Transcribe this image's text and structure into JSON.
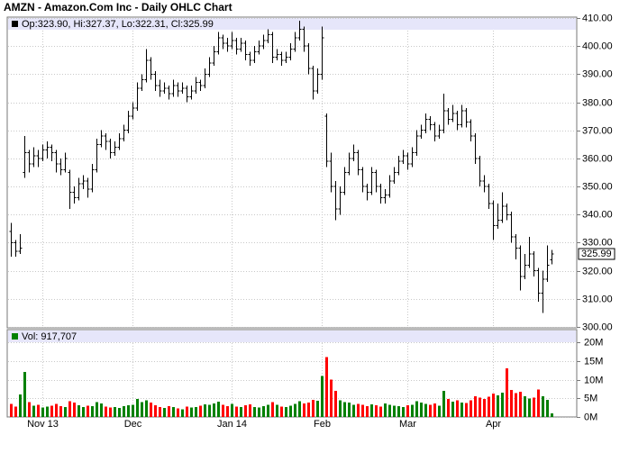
{
  "chart_data": {
    "type": "ohlc",
    "title": "AMZN - Amazon.Com Inc - Daily OHLC Chart",
    "price_legend": "Op:323.90, Hi:327.37, Lo:322.31, Cl:325.99",
    "volume_legend": "Vol: 917,707",
    "categories": [
      null,
      null,
      null,
      null,
      null,
      null,
      null,
      "Nov 13",
      null,
      null,
      null,
      null,
      null,
      null,
      null,
      null,
      null,
      null,
      null,
      null,
      null,
      null,
      null,
      null,
      null,
      null,
      null,
      "Dec",
      null,
      null,
      null,
      null,
      null,
      null,
      null,
      null,
      null,
      null,
      null,
      null,
      null,
      null,
      null,
      null,
      null,
      null,
      null,
      null,
      null,
      "Jan 14",
      null,
      null,
      null,
      null,
      null,
      null,
      null,
      null,
      null,
      null,
      null,
      null,
      null,
      null,
      null,
      null,
      null,
      null,
      null,
      "Feb",
      null,
      null,
      null,
      null,
      null,
      null,
      null,
      null,
      null,
      null,
      null,
      null,
      null,
      null,
      null,
      null,
      null,
      null,
      "Mar",
      null,
      null,
      null,
      null,
      null,
      null,
      null,
      null,
      null,
      null,
      null,
      null,
      null,
      null,
      null,
      null,
      null,
      null,
      "Apr",
      null,
      null,
      null,
      null,
      null,
      null,
      null,
      null,
      null,
      null,
      null,
      null,
      null
    ],
    "ohlc": [
      [
        334,
        337,
        325,
        330
      ],
      [
        330,
        331,
        325,
        327
      ],
      [
        327,
        333,
        326,
        328
      ],
      [
        355,
        368,
        353,
        362
      ],
      [
        362,
        363,
        355,
        358
      ],
      [
        358,
        364,
        357,
        361
      ],
      [
        361,
        363,
        357,
        360
      ],
      [
        360,
        365,
        359,
        363
      ],
      [
        363,
        366,
        360,
        364
      ],
      [
        364,
        365,
        359,
        362
      ],
      [
        362,
        363,
        355,
        358
      ],
      [
        358,
        360,
        354,
        356
      ],
      [
        356,
        362,
        355,
        360
      ],
      [
        355,
        356,
        342,
        348
      ],
      [
        348,
        350,
        344,
        346
      ],
      [
        346,
        353,
        345,
        351
      ],
      [
        351,
        354,
        349,
        352
      ],
      [
        352,
        353,
        346,
        349
      ],
      [
        349,
        358,
        348,
        356
      ],
      [
        356,
        367,
        355,
        365
      ],
      [
        365,
        370,
        364,
        368
      ],
      [
        368,
        369,
        363,
        366
      ],
      [
        366,
        367,
        360,
        362
      ],
      [
        362,
        366,
        361,
        364
      ],
      [
        364,
        369,
        363,
        367
      ],
      [
        367,
        372,
        366,
        370
      ],
      [
        370,
        377,
        369,
        375
      ],
      [
        375,
        380,
        374,
        378
      ],
      [
        378,
        387,
        377,
        385
      ],
      [
        385,
        390,
        384,
        388
      ],
      [
        388,
        399,
        387,
        395
      ],
      [
        395,
        396,
        388,
        390
      ],
      [
        390,
        391,
        384,
        386
      ],
      [
        386,
        388,
        382,
        384
      ],
      [
        384,
        387,
        383,
        385
      ],
      [
        385,
        386,
        381,
        383
      ],
      [
        383,
        388,
        382,
        386
      ],
      [
        386,
        387,
        382,
        384
      ],
      [
        384,
        387,
        383,
        385
      ],
      [
        385,
        386,
        380,
        382
      ],
      [
        382,
        386,
        381,
        384
      ],
      [
        384,
        389,
        383,
        387
      ],
      [
        387,
        388,
        384,
        386
      ],
      [
        386,
        392,
        385,
        390
      ],
      [
        390,
        396,
        389,
        394
      ],
      [
        394,
        400,
        393,
        398
      ],
      [
        398,
        405,
        397,
        403
      ],
      [
        403,
        404,
        399,
        401
      ],
      [
        401,
        403,
        398,
        400
      ],
      [
        400,
        405,
        399,
        402
      ],
      [
        402,
        403,
        397,
        399
      ],
      [
        399,
        403,
        398,
        401
      ],
      [
        401,
        402,
        395,
        397
      ],
      [
        397,
        398,
        393,
        395
      ],
      [
        395,
        400,
        394,
        398
      ],
      [
        398,
        402,
        397,
        400
      ],
      [
        400,
        404,
        399,
        402
      ],
      [
        402,
        406,
        401,
        404
      ],
      [
        404,
        405,
        394,
        396
      ],
      [
        396,
        399,
        395,
        397
      ],
      [
        397,
        398,
        393,
        395
      ],
      [
        395,
        398,
        394,
        396
      ],
      [
        396,
        401,
        395,
        399
      ],
      [
        399,
        405,
        398,
        403
      ],
      [
        403,
        409,
        402,
        406
      ],
      [
        406,
        407,
        398,
        400
      ],
      [
        400,
        401,
        390,
        392
      ],
      [
        392,
        393,
        381,
        384
      ],
      [
        384,
        392,
        383,
        390
      ],
      [
        390,
        407,
        388,
        403
      ],
      [
        375,
        376,
        357,
        359
      ],
      [
        359,
        362,
        348,
        350
      ],
      [
        350,
        352,
        338,
        342
      ],
      [
        342,
        350,
        340,
        348
      ],
      [
        348,
        357,
        347,
        355
      ],
      [
        355,
        362,
        354,
        360
      ],
      [
        360,
        365,
        359,
        362
      ],
      [
        362,
        363,
        354,
        356
      ],
      [
        356,
        357,
        348,
        350
      ],
      [
        350,
        351,
        345,
        348
      ],
      [
        348,
        357,
        347,
        355
      ],
      [
        355,
        356,
        348,
        350
      ],
      [
        350,
        351,
        344,
        346
      ],
      [
        346,
        349,
        344,
        347
      ],
      [
        347,
        354,
        346,
        352
      ],
      [
        352,
        357,
        351,
        355
      ],
      [
        355,
        361,
        354,
        359
      ],
      [
        359,
        363,
        358,
        361
      ],
      [
        361,
        362,
        356,
        358
      ],
      [
        358,
        364,
        357,
        362
      ],
      [
        362,
        370,
        361,
        368
      ],
      [
        368,
        372,
        367,
        370
      ],
      [
        370,
        376,
        369,
        374
      ],
      [
        374,
        375,
        370,
        372
      ],
      [
        372,
        373,
        366,
        368
      ],
      [
        368,
        372,
        367,
        370
      ],
      [
        370,
        383,
        369,
        377
      ],
      [
        377,
        378,
        372,
        374
      ],
      [
        374,
        379,
        373,
        376
      ],
      [
        376,
        377,
        370,
        372
      ],
      [
        372,
        379,
        371,
        377
      ],
      [
        377,
        378,
        371,
        373
      ],
      [
        373,
        374,
        366,
        368
      ],
      [
        368,
        369,
        358,
        360
      ],
      [
        360,
        361,
        350,
        352
      ],
      [
        352,
        354,
        348,
        350
      ],
      [
        350,
        351,
        342,
        344
      ],
      [
        344,
        345,
        331,
        336
      ],
      [
        336,
        344,
        335,
        338
      ],
      [
        338,
        348,
        337,
        343
      ],
      [
        343,
        344,
        338,
        340
      ],
      [
        340,
        341,
        330,
        332
      ],
      [
        332,
        333,
        324,
        328
      ],
      [
        328,
        329,
        313,
        318
      ],
      [
        318,
        326,
        317,
        322
      ],
      [
        322,
        332,
        321,
        326
      ],
      [
        326,
        327,
        318,
        320
      ],
      [
        320,
        321,
        309,
        312
      ],
      [
        312,
        320,
        305,
        317
      ],
      [
        317,
        329,
        316,
        322
      ],
      [
        323.9,
        327.37,
        322.31,
        325.99
      ]
    ],
    "volume": [
      3500000,
      2800000,
      6000000,
      12000000,
      4000000,
      3000000,
      3200000,
      2500000,
      2800000,
      3000000,
      3500000,
      2900000,
      2600000,
      4200000,
      3800000,
      3100000,
      2700000,
      3000000,
      2900000,
      4000000,
      3600000,
      2800000,
      2500000,
      2600000,
      2400000,
      2900000,
      3100000,
      3300000,
      4800000,
      4000000,
      4500000,
      3800000,
      3100000,
      2700000,
      2400000,
      2900000,
      2600000,
      2300000,
      2100000,
      2800000,
      2500000,
      2700000,
      3000000,
      3400000,
      3200000,
      3600000,
      4100000,
      3300000,
      2900000,
      3500000,
      2800000,
      2600000,
      3100000,
      3400000,
      2700000,
      2500000,
      2900000,
      3200000,
      4000000,
      3300000,
      2800000,
      2600000,
      3000000,
      3500000,
      4200000,
      3600000,
      3900000,
      4600000,
      4300000,
      11000000,
      16000000,
      10000000,
      7000000,
      4500000,
      4000000,
      3800000,
      3200000,
      3500000,
      3300000,
      2900000,
      3400000,
      3100000,
      2800000,
      3600000,
      3200000,
      3000000,
      2900000,
      2700000,
      3100000,
      3300000,
      4200000,
      3800000,
      3500000,
      3200000,
      3600000,
      3000000,
      7000000,
      4800000,
      4100000,
      4400000,
      3900000,
      3700000,
      4400000,
      5500000,
      5200000,
      4800000,
      5400000,
      6300000,
      5800000,
      6500000,
      13000000,
      7200000,
      6400000,
      6800000,
      5500000,
      4900000,
      5200000,
      7400000,
      5600000,
      4600000,
      917707
    ],
    "ylim": [
      300,
      410
    ],
    "yticks": [
      {
        "value": 300,
        "label": "300.00"
      },
      {
        "value": 310,
        "label": "310.00"
      },
      {
        "value": 320,
        "label": "320.00"
      },
      {
        "value": 330,
        "label": "330.00"
      },
      {
        "value": 340,
        "label": "340.00"
      },
      {
        "value": 350,
        "label": "350.00"
      },
      {
        "value": 360,
        "label": "360.00"
      },
      {
        "value": 370,
        "label": "370.00"
      },
      {
        "value": 380,
        "label": "380.00"
      },
      {
        "value": 390,
        "label": "390.00"
      },
      {
        "value": 400,
        "label": "400.00"
      },
      {
        "value": 410,
        "label": "410.00"
      }
    ],
    "y2lim": [
      0,
      20000000
    ],
    "y2ticks": [
      {
        "value": 0,
        "label": "0M"
      },
      {
        "value": 5000000,
        "label": "5M"
      },
      {
        "value": 10000000,
        "label": "10M"
      },
      {
        "value": 15000000,
        "label": "15M"
      },
      {
        "value": 20000000,
        "label": "20M"
      }
    ],
    "color": "#000000",
    "up_color": "#008000",
    "down_color": "#ff0000",
    "grid": true
  }
}
